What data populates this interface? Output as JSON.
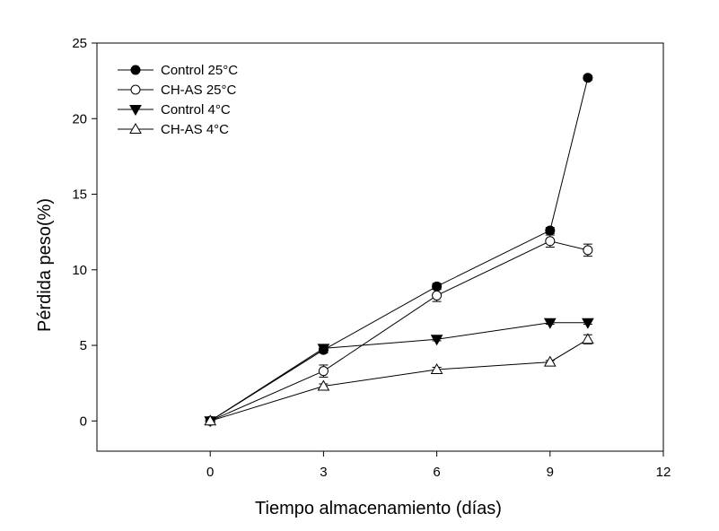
{
  "chart_data": {
    "type": "line",
    "title": "",
    "xlabel": "Tiempo almacenamiento (días)",
    "ylabel": "Pérdida peso(%)",
    "xlim": [
      -3,
      12
    ],
    "ylim": [
      -2,
      25
    ],
    "xticks": [
      0,
      3,
      6,
      9,
      12
    ],
    "yticks": [
      0,
      5,
      10,
      15,
      20,
      25
    ],
    "grid": false,
    "legend_position": "top-left",
    "series": [
      {
        "name": "Control 25°C",
        "marker": "circle-filled",
        "x": [
          0,
          3,
          6,
          9,
          10
        ],
        "y": [
          0,
          4.7,
          8.9,
          12.6,
          22.7
        ],
        "err": [
          0.1,
          0.2,
          0.2,
          0.2,
          0.15
        ]
      },
      {
        "name": "CH-AS 25°C",
        "marker": "circle-open",
        "x": [
          0,
          3,
          6,
          9,
          10
        ],
        "y": [
          0,
          3.3,
          8.3,
          11.9,
          11.3
        ],
        "err": [
          0.1,
          0.4,
          0.4,
          0.4,
          0.4
        ]
      },
      {
        "name": "Control 4°C",
        "marker": "triangle-down-filled",
        "x": [
          0,
          3,
          6,
          9,
          10
        ],
        "y": [
          0,
          4.8,
          5.4,
          6.5,
          6.5
        ],
        "err": [
          0.1,
          0.2,
          0.1,
          0.1,
          0.1
        ]
      },
      {
        "name": "CH-AS 4°C",
        "marker": "triangle-up-open",
        "x": [
          0,
          3,
          6,
          9,
          10
        ],
        "y": [
          0,
          2.3,
          3.4,
          3.9,
          5.4
        ],
        "err": [
          0.1,
          0.15,
          0.15,
          0.1,
          0.3
        ]
      }
    ]
  }
}
